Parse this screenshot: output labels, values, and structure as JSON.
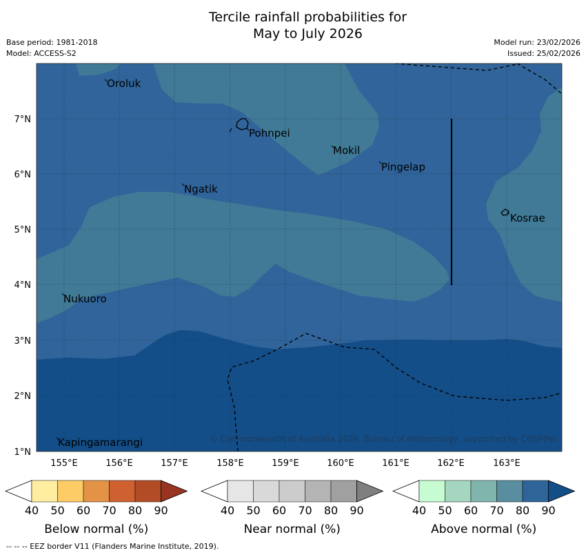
{
  "title": {
    "line1": "Tercile rainfall probabilities for",
    "line2": "May to July 2026"
  },
  "meta": {
    "base_period": "Base period: 1981-2018",
    "model": "Model: ACCESS-S2",
    "model_run": "Model run: 23/02/2026",
    "issued": "Issued: 25/02/2026"
  },
  "map": {
    "lon_ticks": [
      "155°E",
      "156°E",
      "157°E",
      "158°E",
      "159°E",
      "160°E",
      "161°E",
      "162°E",
      "163°E"
    ],
    "lat_ticks": [
      "1°N",
      "2°N",
      "3°N",
      "4°N",
      "5°N",
      "6°N",
      "7°N"
    ],
    "places": [
      "Oroluk",
      "Pohnpei",
      "Mokil",
      "Pingelap",
      "Ngatik",
      "Kosrae",
      "Nukuoro",
      "Kapingamarangi"
    ],
    "copyright": "© Commonwealth of Australia 2026, Bureau of Meteorology, supported by COSPPac",
    "region_colors": {
      "above_60": "#407a96",
      "above_80": "#30649a",
      "above_90": "#134e88"
    }
  },
  "legends": [
    {
      "label": "Below normal (%)",
      "ticks": [
        "40",
        "50",
        "60",
        "70",
        "80",
        "90"
      ],
      "colors": [
        "#ffeda0",
        "#fecc66",
        "#e29346",
        "#cf6131",
        "#b24c27",
        "#98341f"
      ]
    },
    {
      "label": "Near normal (%)",
      "ticks": [
        "40",
        "50",
        "60",
        "70",
        "80",
        "90"
      ],
      "colors": [
        "#e6e6e6",
        "#d9d9d9",
        "#cccccc",
        "#b4b4b4",
        "#a0a0a0",
        "#7f7f7f"
      ]
    },
    {
      "label": "Above normal (%)",
      "ticks": [
        "40",
        "50",
        "60",
        "70",
        "80",
        "90"
      ],
      "colors": [
        "#c7fbd1",
        "#a4d6c0",
        "#80b5ae",
        "#588e9f",
        "#2f6499",
        "#134e88"
      ]
    }
  ],
  "footer": "--  --  -- EEZ border V11 (Flanders Marine Institute, 2019)."
}
